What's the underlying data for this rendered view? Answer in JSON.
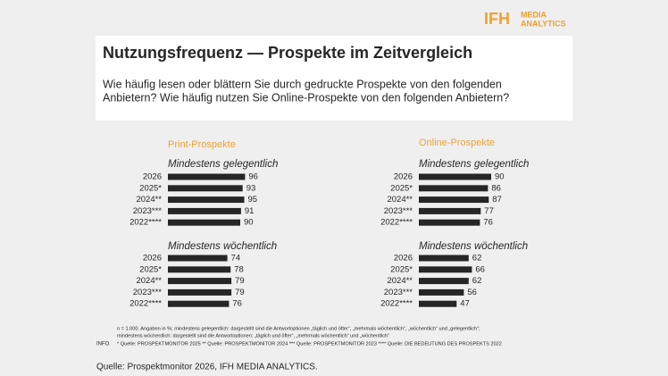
{
  "logo": {
    "brand": "IFH",
    "lines": [
      "MEDIA",
      "ANALYTICS"
    ]
  },
  "title": "Nutzungsfrequenz — Prospekte im Zeitvergleich",
  "question": [
    "Wie häufig lesen oder blättern Sie durch gedruckte Prospekte von den folgenden",
    "Anbietern? Wie häufig nutzen Sie Online-Prospekte von den folgenden Anbietern?"
  ],
  "columns": [
    "Print-Prospekte",
    "Online-Prospekte"
  ],
  "chart_data": [
    {
      "type": "bar",
      "orientation": "horizontal",
      "title": "Mindestens gelegentlich",
      "categories": [
        "2026",
        "2025*",
        "2024**",
        "2023***",
        "2022****"
      ],
      "values": [
        96,
        93,
        95,
        91,
        90
      ],
      "color": "#262626"
    },
    {
      "type": "bar",
      "orientation": "horizontal",
      "title": "Mindestens wöchentlich",
      "categories": [
        "2026",
        "2025*",
        "2024**",
        "2023***",
        "2022****"
      ],
      "values": [
        74,
        78,
        79,
        79,
        76
      ],
      "color": "#262626"
    },
    {
      "type": "bar",
      "orientation": "horizontal",
      "title": "Mindestens gelegentlich",
      "categories": [
        "2026",
        "2025*",
        "2024**",
        "2023***",
        "2022****"
      ],
      "values": [
        90,
        86,
        87,
        77,
        76
      ],
      "color": "#262626"
    },
    {
      "type": "bar",
      "orientation": "horizontal",
      "title": "Mindestens wöchentlich",
      "categories": [
        "2026",
        "2025*",
        "2024**",
        "2023***",
        "2022****"
      ],
      "values": [
        62,
        66,
        62,
        56,
        47
      ],
      "color": "#262626"
    }
  ],
  "info_label": "INFO",
  "notes": [
    "n = 1.000. Angaben in %; mindestens gelegentlich: dargestellt sind die Antwortoptionen „täglich und öfter“, „mehrmals wöchentlich“, „wöchentlich“ und „gelegentlich“;",
    "mindestens wöchentlich: dargestellt sind die Antwortoptionen: „täglich und öfter“, „mehrmals wöchentlich“ und „wöchentlich“",
    "* Quelle: PROSPEKTMONITOR 2025 ** Quelle: PROSPEKTMONITOR 2024 *** Quelle: PROSPEKTMONITOR 2023 **** Quelle: DIE BEDEUTUNG DES PROSPEKTS 2022"
  ],
  "source": "Quelle: Prospektmonitor 2026, IFH MEDIA ANALYTICS."
}
